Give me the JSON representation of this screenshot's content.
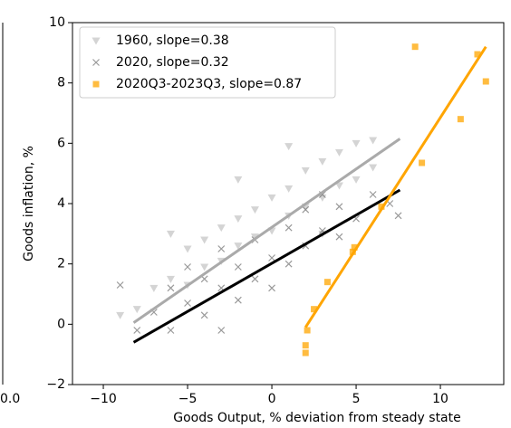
{
  "chart_data": {
    "type": "scatter",
    "xlabel": "Goods Output, % deviation from steady state",
    "ylabel": "Goods inflation, %",
    "xlim": [
      -11.83,
      13.76
    ],
    "ylim": [
      -2,
      10
    ],
    "xticks": [
      {
        "value": -10,
        "label": "−10"
      },
      {
        "value": -5,
        "label": "−5"
      },
      0,
      5,
      10
    ],
    "yticks": [
      {
        "value": -2,
        "label": "−2"
      },
      0,
      2,
      4,
      6,
      8,
      10
    ],
    "legend": "upper left",
    "series": [
      {
        "name": "1960, slope=0.38",
        "color": "#b0b0b0",
        "marker": "triangle",
        "x": [
          -8,
          -7,
          -6,
          -5,
          -5,
          -4,
          -4,
          -3,
          -3,
          -2,
          -2,
          -1,
          -1,
          0,
          0,
          1,
          1,
          2,
          2,
          3,
          3,
          4,
          4,
          5,
          5,
          6,
          6,
          -6,
          -2,
          1,
          -9,
          3
        ],
        "values": [
          0.5,
          1.2,
          1.5,
          2.5,
          1.3,
          2.8,
          1.9,
          3.2,
          2.1,
          3.5,
          2.6,
          3.8,
          2.9,
          4.2,
          3.1,
          4.5,
          3.6,
          5.1,
          3.9,
          5.4,
          4.2,
          5.7,
          4.6,
          6.0,
          4.8,
          6.1,
          5.2,
          3.0,
          4.8,
          5.9,
          0.3,
          3.0
        ],
        "fit": {
          "color": "#aaaaaa",
          "x": [
            -8.2,
            7.6
          ],
          "values": [
            0.05,
            6.15
          ]
        }
      },
      {
        "name": "2020, slope=0.32",
        "color": "#555555",
        "marker": "x",
        "x": [
          -8,
          -7,
          -6,
          -6,
          -5,
          -5,
          -4,
          -4,
          -3,
          -3,
          -2,
          -2,
          -1,
          -1,
          0,
          0,
          1,
          1,
          2,
          2,
          3,
          3,
          4,
          4,
          5,
          6,
          7,
          7.5,
          -9,
          -3
        ],
        "values": [
          -0.2,
          0.4,
          -0.2,
          1.2,
          0.7,
          1.9,
          0.3,
          1.5,
          1.2,
          2.5,
          0.8,
          1.9,
          1.5,
          2.8,
          1.2,
          2.2,
          2.0,
          3.2,
          2.6,
          3.8,
          3.1,
          4.3,
          2.9,
          3.9,
          3.5,
          4.3,
          4.0,
          3.6,
          1.3,
          -0.2
        ],
        "fit": {
          "color": "#000000",
          "x": [
            -8.2,
            7.6
          ],
          "values": [
            -0.6,
            4.45
          ]
        }
      },
      {
        "name": "2020Q3-2023Q3, slope=0.87",
        "color": "#ffa500",
        "marker": "square",
        "x": [
          2,
          2,
          2.1,
          2.5,
          3.3,
          4.8,
          4.9,
          6.5,
          8.5,
          8.9,
          11.2,
          12.2,
          12.7
        ],
        "values": [
          -0.7,
          -0.95,
          -0.2,
          0.5,
          1.4,
          2.4,
          2.55,
          3.9,
          9.2,
          5.35,
          6.8,
          8.95,
          8.05
        ],
        "fit": {
          "color": "#ffa500",
          "x": [
            2,
            12.7
          ],
          "values": [
            -0.1,
            9.2
          ]
        }
      }
    ],
    "neighbor_tick_label": "0.0"
  }
}
